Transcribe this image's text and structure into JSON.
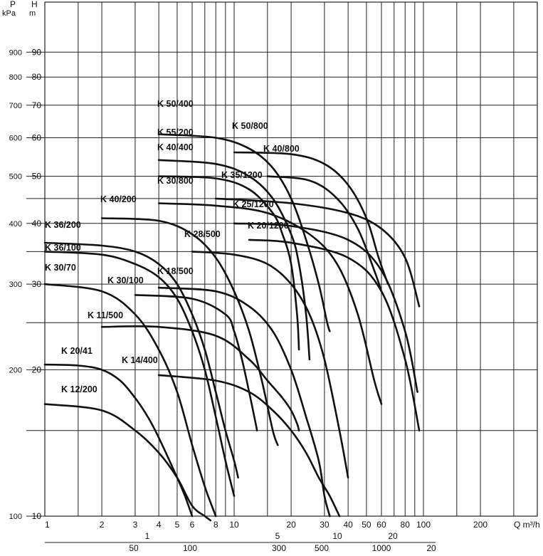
{
  "chart_data": {
    "type": "line",
    "title": "",
    "x_axis": {
      "label": "Q m³/h",
      "scale": "log",
      "range": [
        1,
        300
      ],
      "tick_labels": [
        "1",
        "2",
        "3",
        "4",
        "5",
        "6",
        "8",
        "10",
        "20",
        "30",
        "40",
        "50",
        "60",
        "80",
        "100",
        "200"
      ]
    },
    "y_axis": {
      "label": "H m",
      "scale": "log",
      "range": [
        10,
        100
      ],
      "tick_labels": [
        "10",
        "20",
        "30",
        "40",
        "50",
        "60",
        "70",
        "80",
        "90"
      ]
    },
    "pressure_axis": {
      "label": "P kPa",
      "tick_labels": [
        "100",
        "200",
        "300",
        "400",
        "500",
        "600",
        "700",
        "800",
        "900"
      ]
    },
    "secondary_x_axes": [
      {
        "label": "",
        "tick_labels": [
          "1",
          "5",
          "10",
          "20"
        ]
      },
      {
        "label": "",
        "tick_labels": [
          "50",
          "100",
          "300",
          "500",
          "1000",
          "20"
        ]
      }
    ],
    "grid": true,
    "series": [
      {
        "name": "K 50/400",
        "x": [
          4,
          8,
          12,
          16,
          20,
          24,
          28,
          31,
          32
        ],
        "y": [
          61,
          60,
          57,
          52,
          45,
          37,
          30,
          25,
          24
        ]
      },
      {
        "name": "K 50/800",
        "x": [
          10,
          20,
          30,
          40,
          50,
          58,
          65
        ],
        "y": [
          56,
          55.5,
          53,
          48,
          41,
          34,
          30
        ]
      },
      {
        "name": "K 55/200",
        "x": [
          4,
          8,
          12,
          16,
          20,
          22,
          24,
          25
        ],
        "y": [
          54,
          53,
          50,
          45,
          38,
          33,
          26,
          21
        ]
      },
      {
        "name": "K 40/400",
        "x": [
          4,
          8,
          12,
          16,
          18,
          20,
          21.5,
          22
        ],
        "y": [
          50,
          49.5,
          47,
          42,
          38,
          33,
          26,
          22
        ]
      },
      {
        "name": "K 40/800",
        "x": [
          15,
          25,
          35,
          45,
          55,
          60
        ],
        "y": [
          50,
          49,
          45,
          39,
          32,
          29
        ]
      },
      {
        "name": "K 30/800",
        "x": [
          4,
          8,
          15,
          25,
          35,
          45,
          55,
          60
        ],
        "y": [
          44,
          43.5,
          42,
          38,
          33,
          26,
          19,
          17
        ]
      },
      {
        "name": "K 35/1200",
        "x": [
          8,
          20,
          40,
          60,
          80,
          95
        ],
        "y": [
          45,
          44,
          42,
          39,
          34,
          27
        ]
      },
      {
        "name": "K 40/200",
        "x": [
          2,
          4,
          6,
          8,
          10,
          12,
          14,
          16,
          17
        ],
        "y": [
          41,
          40.5,
          38,
          34,
          29,
          24,
          19,
          15,
          14
        ]
      },
      {
        "name": "K 25/1200",
        "x": [
          10,
          20,
          40,
          60,
          80,
          93
        ],
        "y": [
          40,
          39.5,
          37,
          32,
          24,
          18
        ]
      },
      {
        "name": "K 20/1200",
        "x": [
          12,
          20,
          40,
          60,
          80,
          95
        ],
        "y": [
          37,
          36.5,
          34,
          29,
          21,
          15
        ]
      },
      {
        "name": "K 36/200",
        "x": [
          1,
          2,
          3,
          4,
          5,
          6,
          7,
          8,
          9,
          10,
          10.5
        ],
        "y": [
          36.5,
          36,
          35,
          33,
          30,
          26,
          22,
          18,
          15,
          13,
          12
        ]
      },
      {
        "name": "K 28/500",
        "x": [
          6,
          10,
          15,
          20,
          25,
          30,
          36,
          40
        ],
        "y": [
          35,
          34.5,
          33,
          30,
          26,
          21,
          15,
          12
        ]
      },
      {
        "name": "K 36/100",
        "x": [
          1,
          2,
          3,
          4,
          5,
          6,
          7,
          8,
          9,
          10
        ],
        "y": [
          35,
          34.5,
          33,
          31,
          28,
          24,
          20,
          16,
          13,
          11
        ]
      },
      {
        "name": "K 30/70",
        "x": [
          1,
          2,
          3,
          4,
          5,
          6,
          7,
          8
        ],
        "y": [
          30,
          29,
          26,
          22,
          18,
          14,
          11.5,
          10
        ]
      },
      {
        "name": "K 18/500",
        "x": [
          4,
          8,
          12,
          16,
          20,
          24,
          28,
          30,
          32
        ],
        "y": [
          29.5,
          29,
          27,
          24,
          20,
          16,
          13,
          11,
          10
        ]
      },
      {
        "name": "K 30/100",
        "x": [
          3,
          6,
          9,
          10,
          11,
          12,
          13,
          13.2
        ],
        "y": [
          28.5,
          28,
          26,
          24,
          21,
          18,
          15.5,
          15
        ]
      },
      {
        "name": "K 11/500",
        "x": [
          2,
          4,
          8,
          12,
          15,
          18,
          20,
          21.5,
          22
        ],
        "y": [
          24.5,
          24.5,
          23.5,
          21,
          19,
          17.5,
          16.5,
          15.5,
          15
        ]
      },
      {
        "name": "K 20/41",
        "x": [
          1,
          1.5,
          2,
          2.5,
          3,
          3.5,
          4,
          5,
          5.5,
          6
        ],
        "y": [
          20.5,
          20.4,
          20,
          19,
          17.5,
          16,
          14.5,
          12,
          11,
          10
        ]
      },
      {
        "name": "K 14/400",
        "x": [
          4,
          8,
          12,
          16,
          20,
          24,
          28,
          32,
          36
        ],
        "y": [
          19.5,
          19,
          18,
          16.5,
          15,
          13.5,
          12,
          11,
          10
        ]
      },
      {
        "name": "K 12/200",
        "x": [
          1,
          2,
          3,
          4,
          5,
          6,
          7,
          7.5
        ],
        "y": [
          17,
          16.5,
          15,
          13.5,
          12,
          10.5,
          10,
          9.8
        ]
      }
    ]
  },
  "ui": {
    "p_label": "P",
    "kpa_label": "kPa",
    "h_label": "H",
    "m_label": "m",
    "q_label": "Q m³/h"
  }
}
